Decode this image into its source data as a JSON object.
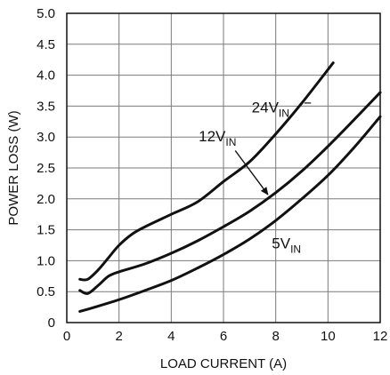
{
  "chart_data": {
    "type": "line",
    "title": "",
    "xlabel": "LOAD CURRENT (A)",
    "ylabel": "POWER LOSS (W)",
    "xlim": [
      0,
      12
    ],
    "ylim": [
      0,
      5
    ],
    "xticks": [
      "0",
      "2",
      "4",
      "6",
      "8",
      "10",
      "12"
    ],
    "yticks": [
      "0",
      "0.5",
      "1.0",
      "1.5",
      "2.0",
      "2.5",
      "3.0",
      "3.5",
      "4.0",
      "4.5",
      "5.0"
    ],
    "grid": true,
    "series": [
      {
        "name": "24VIN",
        "label_main": "24V",
        "label_sub": "IN",
        "points": [
          [
            0.5,
            0.7
          ],
          [
            0.8,
            0.7
          ],
          [
            1.2,
            0.85
          ],
          [
            1.6,
            1.05
          ],
          [
            2.0,
            1.25
          ],
          [
            2.5,
            1.43
          ],
          [
            3.0,
            1.55
          ],
          [
            4.0,
            1.75
          ],
          [
            5.0,
            1.95
          ],
          [
            6.0,
            2.28
          ],
          [
            7.0,
            2.6
          ],
          [
            8.0,
            3.05
          ],
          [
            9.0,
            3.55
          ],
          [
            10.2,
            4.2
          ]
        ]
      },
      {
        "name": "12VIN",
        "label_main": "12V",
        "label_sub": "IN",
        "points": [
          [
            0.5,
            0.52
          ],
          [
            0.8,
            0.47
          ],
          [
            1.2,
            0.6
          ],
          [
            1.6,
            0.75
          ],
          [
            2.0,
            0.82
          ],
          [
            3.0,
            0.95
          ],
          [
            4.0,
            1.12
          ],
          [
            5.0,
            1.32
          ],
          [
            6.0,
            1.55
          ],
          [
            7.0,
            1.8
          ],
          [
            8.0,
            2.1
          ],
          [
            9.0,
            2.45
          ],
          [
            10.0,
            2.85
          ],
          [
            11.0,
            3.28
          ],
          [
            12.0,
            3.72
          ]
        ]
      },
      {
        "name": "5VIN",
        "label_main": "5V",
        "label_sub": "IN",
        "points": [
          [
            0.5,
            0.18
          ],
          [
            1.0,
            0.24
          ],
          [
            2.0,
            0.37
          ],
          [
            3.0,
            0.52
          ],
          [
            4.0,
            0.68
          ],
          [
            5.0,
            0.88
          ],
          [
            6.0,
            1.1
          ],
          [
            7.0,
            1.35
          ],
          [
            8.0,
            1.65
          ],
          [
            9.0,
            2.0
          ],
          [
            10.0,
            2.38
          ],
          [
            11.0,
            2.83
          ],
          [
            12.0,
            3.33
          ]
        ]
      }
    ]
  }
}
